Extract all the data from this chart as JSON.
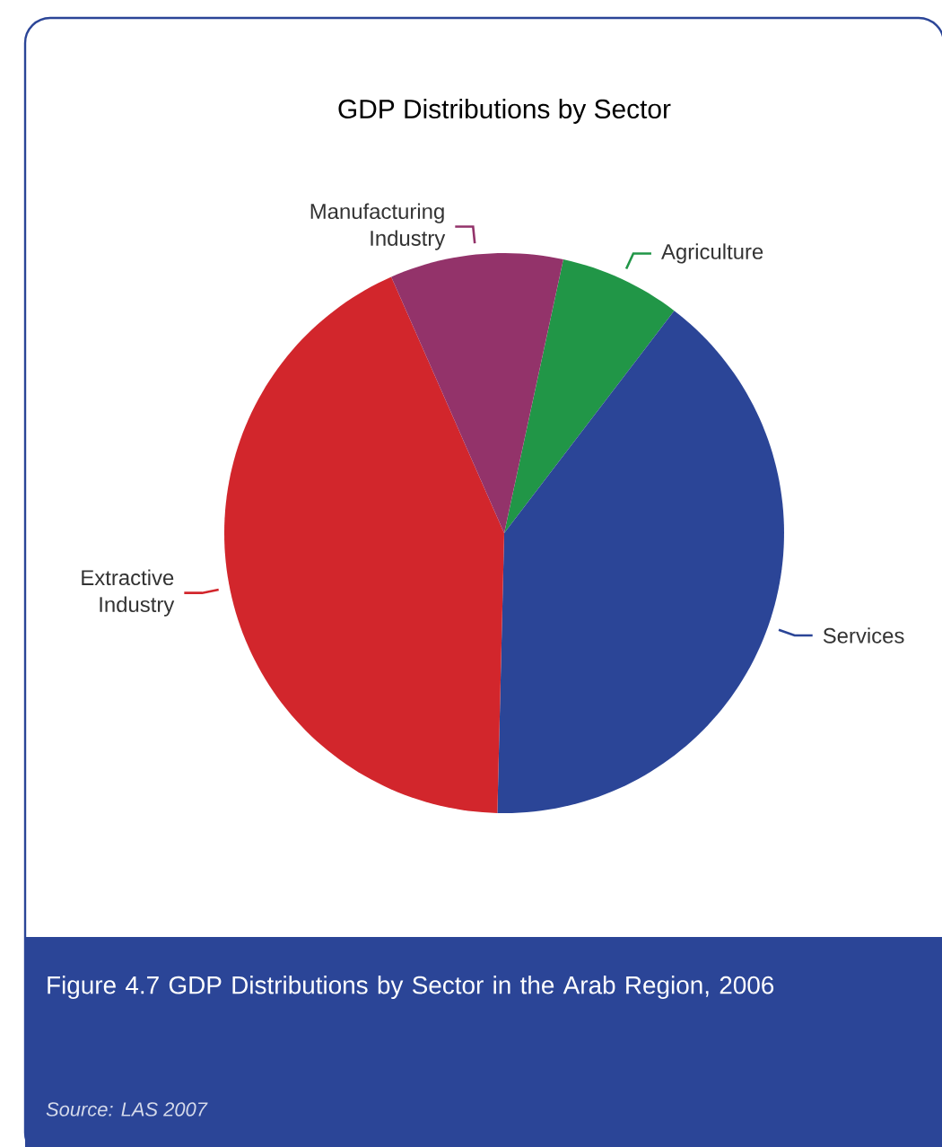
{
  "chart_data": {
    "type": "pie",
    "title": "GDP Distributions by Sector",
    "categories": [
      "Agriculture",
      "Services",
      "Extractive Industry",
      "Manufacturing Industry"
    ],
    "values": [
      7,
      40,
      43,
      10
    ],
    "colors": [
      "#219647",
      "#2b4597",
      "#d2262c",
      "#93336a"
    ],
    "annotations": [
      "Figure 4.7 GDP Distributions by Sector in the Arab Region, 2006",
      "Source: LAS 2007"
    ]
  }
}
